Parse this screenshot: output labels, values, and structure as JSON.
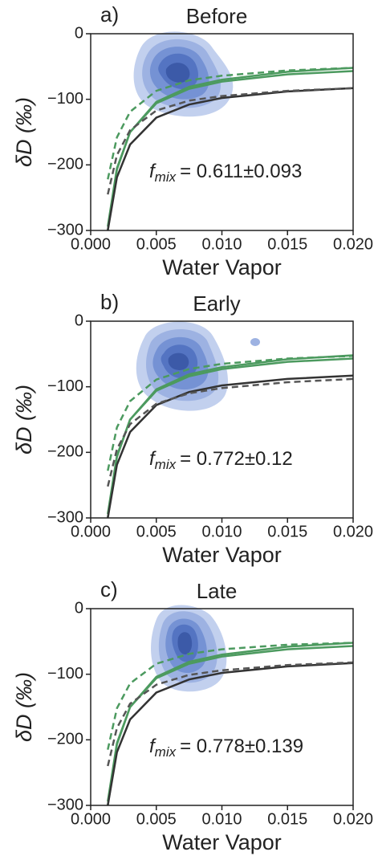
{
  "chart_data": [
    {
      "type": "line",
      "panel_label": "a)",
      "title": "Before",
      "xlabel": "Water Vapor",
      "ylabel": "δD (‰)",
      "annotation": {
        "symbol": "f",
        "subscript": "mix",
        "text": "= 0.611±0.093"
      },
      "xlim": [
        0,
        0.02
      ],
      "ylim": [
        -300,
        0
      ],
      "xticks": [
        {
          "value": 0,
          "label": "0.000"
        },
        {
          "value": 0.005,
          "label": "0.005"
        },
        {
          "value": 0.01,
          "label": "0.010"
        },
        {
          "value": 0.015,
          "label": "0.015"
        },
        {
          "value": 0.02,
          "label": "0.020"
        }
      ],
      "yticks": [
        {
          "value": -300,
          "label": "−300"
        },
        {
          "value": -200,
          "label": "−200"
        },
        {
          "value": -100,
          "label": "−100"
        },
        0
      ],
      "x": [
        0.0013,
        0.002,
        0.003,
        0.005,
        0.0075,
        0.01,
        0.015,
        0.02
      ],
      "series": [
        {
          "color": "#4c9a5f",
          "style": "solid",
          "values": [
            -300,
            -207,
            -150,
            -104,
            -81,
            -70,
            -58,
            -52
          ]
        },
        {
          "color": "#4c9a5f",
          "style": "solid",
          "values": [
            -294,
            -205,
            -150,
            -106,
            -84,
            -73,
            -62,
            -57
          ]
        },
        {
          "color": "#333333",
          "style": "solid",
          "values": [
            -300,
            -219,
            -169,
            -128,
            -108,
            -98,
            -88,
            -83
          ]
        },
        {
          "color": "#4c9a5f",
          "style": "dashed",
          "values": [
            -222,
            -158,
            -119,
            -87,
            -71,
            -64,
            -56,
            -52
          ]
        },
        {
          "color": "#555555",
          "style": "dashed",
          "values": [
            -245,
            -185,
            -147,
            -117,
            -102,
            -95,
            -87,
            -83
          ]
        }
      ]
    },
    {
      "type": "line",
      "panel_label": "b)",
      "title": "Early",
      "xlabel": "Water Vapor",
      "ylabel": "δD (‰)",
      "annotation": {
        "symbol": "f",
        "subscript": "mix",
        "text": "= 0.772±0.12"
      },
      "xlim": [
        0,
        0.02
      ],
      "ylim": [
        -300,
        0
      ],
      "xticks": [
        {
          "value": 0,
          "label": "0.000"
        },
        {
          "value": 0.005,
          "label": "0.005"
        },
        {
          "value": 0.01,
          "label": "0.010"
        },
        {
          "value": 0.015,
          "label": "0.015"
        },
        {
          "value": 0.02,
          "label": "0.020"
        }
      ],
      "yticks": [
        {
          "value": -300,
          "label": "−300"
        },
        {
          "value": -200,
          "label": "−200"
        },
        {
          "value": -100,
          "label": "−100"
        },
        0
      ],
      "x": [
        0.0013,
        0.002,
        0.003,
        0.005,
        0.0075,
        0.01,
        0.015,
        0.02
      ],
      "series": [
        {
          "color": "#4c9a5f",
          "style": "solid",
          "values": [
            -300,
            -207,
            -150,
            -104,
            -81,
            -70,
            -58,
            -52
          ]
        },
        {
          "color": "#4c9a5f",
          "style": "solid",
          "values": [
            -294,
            -205,
            -150,
            -106,
            -84,
            -73,
            -62,
            -57
          ]
        },
        {
          "color": "#333333",
          "style": "solid",
          "values": [
            -300,
            -219,
            -169,
            -128,
            -108,
            -98,
            -88,
            -83
          ]
        },
        {
          "color": "#4c9a5f",
          "style": "dashed",
          "values": [
            -228,
            -162,
            -122,
            -89,
            -73,
            -65,
            -57,
            -53
          ]
        },
        {
          "color": "#555555",
          "style": "dashed",
          "values": [
            -252,
            -195,
            -157,
            -126,
            -110,
            -102,
            -93,
            -88
          ]
        }
      ]
    },
    {
      "type": "line",
      "panel_label": "c)",
      "title": "Late",
      "xlabel": "Water Vapor",
      "ylabel": "δD (‰)",
      "annotation": {
        "symbol": "f",
        "subscript": "mix",
        "text": "= 0.778±0.139"
      },
      "xlim": [
        0,
        0.02
      ],
      "ylim": [
        -300,
        0
      ],
      "xticks": [
        {
          "value": 0,
          "label": "0.000"
        },
        {
          "value": 0.005,
          "label": "0.005"
        },
        {
          "value": 0.01,
          "label": "0.010"
        },
        {
          "value": 0.015,
          "label": "0.015"
        },
        {
          "value": 0.02,
          "label": "0.020"
        }
      ],
      "yticks": [
        {
          "value": -300,
          "label": "−300"
        },
        {
          "value": -200,
          "label": "−200"
        },
        {
          "value": -100,
          "label": "−100"
        },
        0
      ],
      "x": [
        0.0013,
        0.002,
        0.003,
        0.005,
        0.0075,
        0.01,
        0.015,
        0.02
      ],
      "series": [
        {
          "color": "#4c9a5f",
          "style": "solid",
          "values": [
            -300,
            -207,
            -150,
            -104,
            -81,
            -70,
            -58,
            -52
          ]
        },
        {
          "color": "#4c9a5f",
          "style": "solid",
          "values": [
            -294,
            -205,
            -150,
            -106,
            -84,
            -73,
            -62,
            -57
          ]
        },
        {
          "color": "#333333",
          "style": "solid",
          "values": [
            -300,
            -219,
            -169,
            -128,
            -108,
            -98,
            -88,
            -83
          ]
        },
        {
          "color": "#4c9a5f",
          "style": "dashed",
          "values": [
            -215,
            -152,
            -114,
            -84,
            -69,
            -62,
            -55,
            -52
          ]
        },
        {
          "color": "#555555",
          "style": "dashed",
          "values": [
            -240,
            -182,
            -145,
            -116,
            -101,
            -94,
            -86,
            -82
          ]
        }
      ]
    }
  ]
}
